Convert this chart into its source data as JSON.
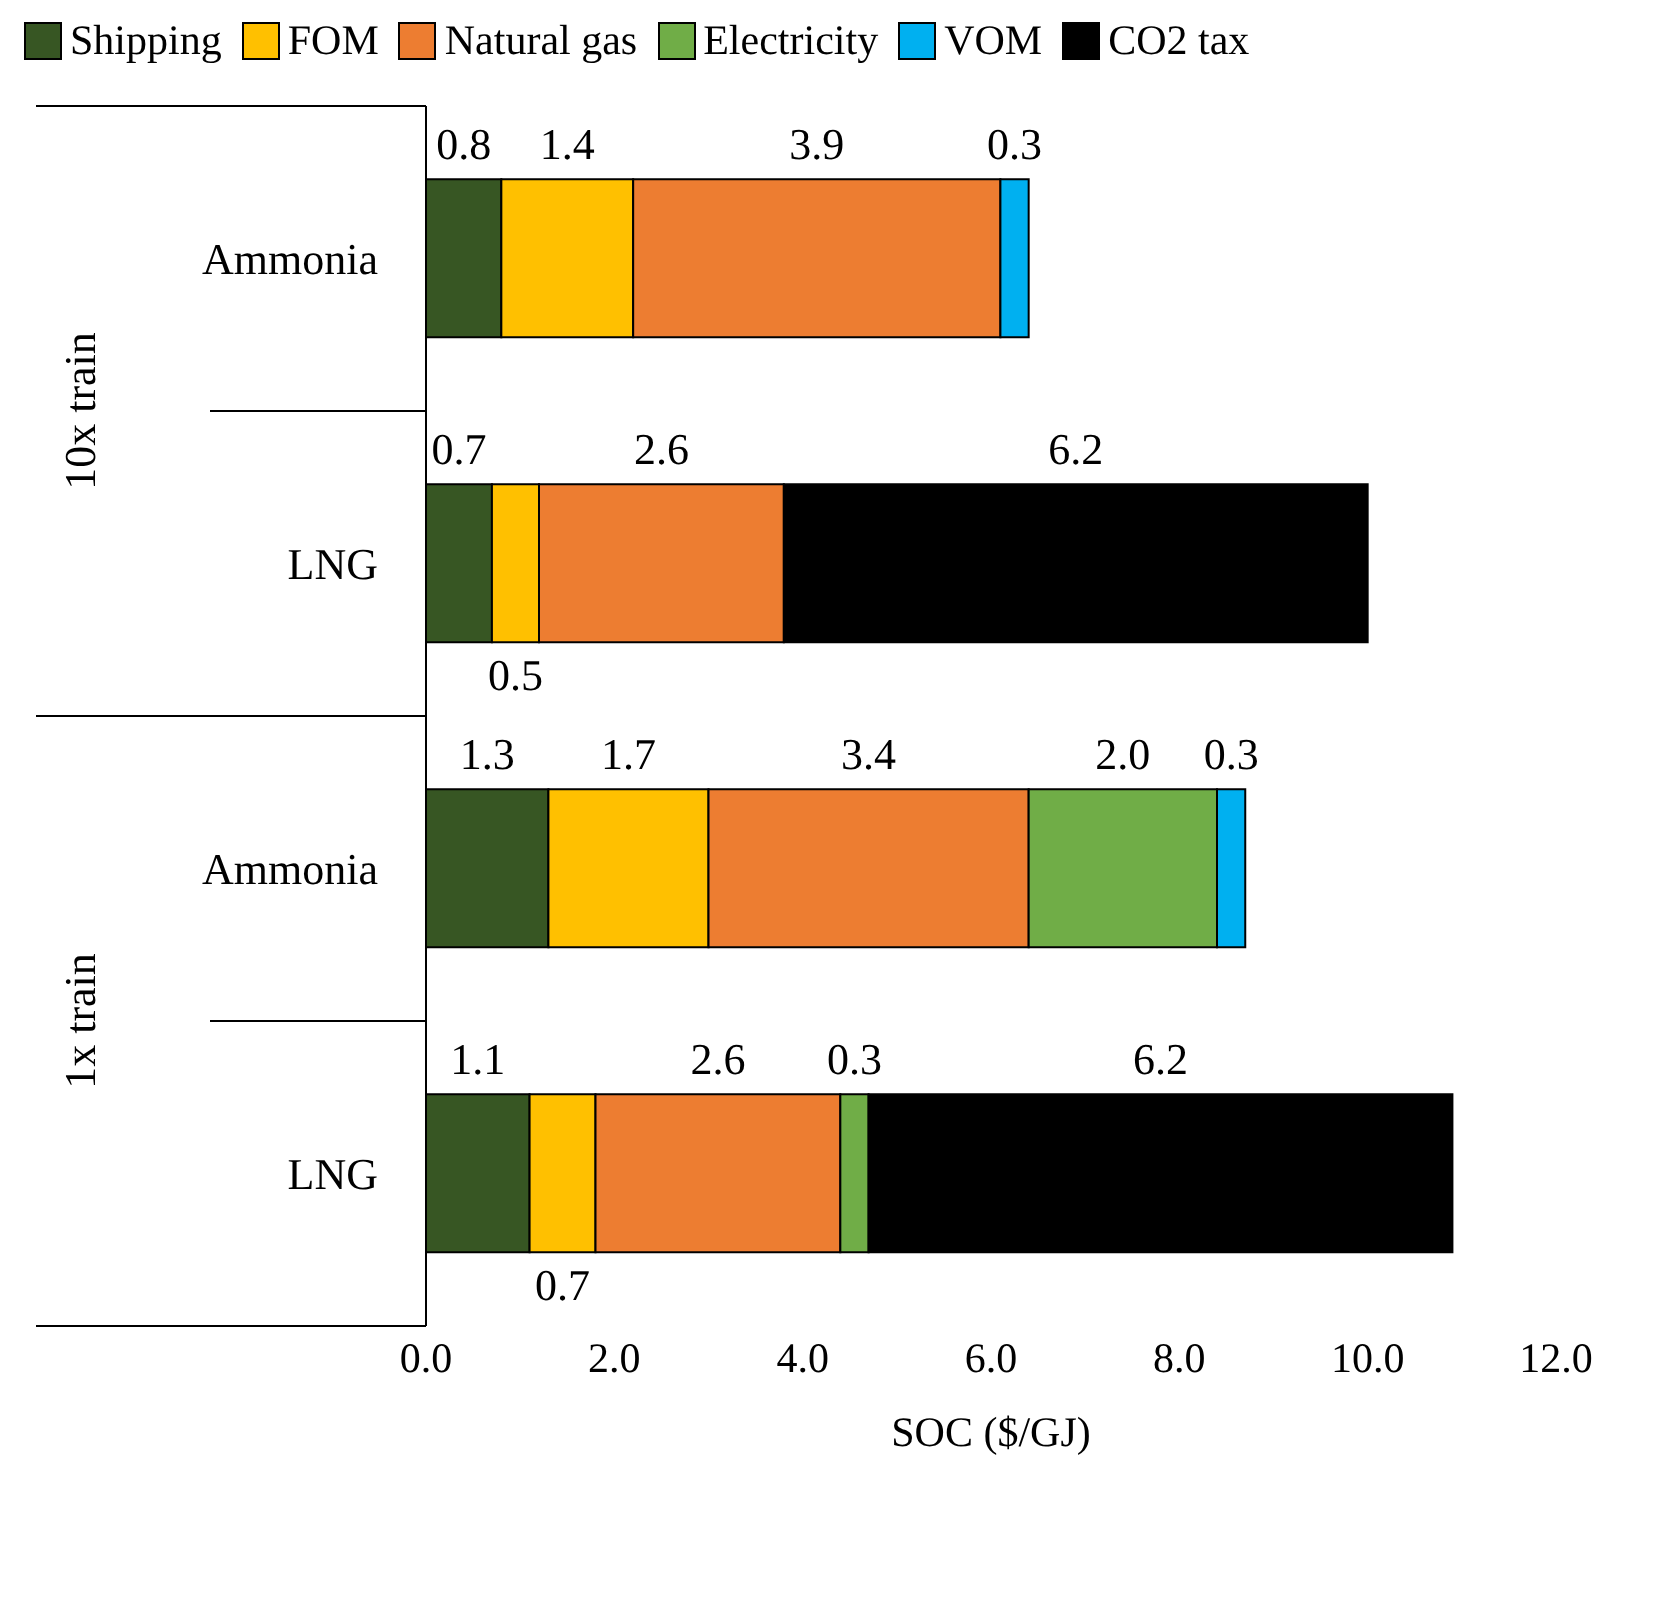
{
  "chart_data": {
    "type": "bar",
    "orientation": "horizontal",
    "stacked": true,
    "xlabel": "SOC ($/GJ)",
    "categories": [
      "Ammonia",
      "LNG",
      "Ammonia",
      "LNG"
    ],
    "annotations": [
      "10x train",
      "1x train"
    ],
    "series": [
      {
        "name": "Shipping",
        "color": "#375623",
        "values": [
          0.8,
          0.7,
          1.3,
          1.1
        ],
        "value_labels": [
          "0.8",
          "0.7",
          "1.3",
          "1.1"
        ]
      },
      {
        "name": "FOM",
        "color": "#ffc000",
        "values": [
          1.4,
          0.5,
          1.7,
          0.7
        ],
        "value_labels": [
          "1.4",
          "0.5",
          "1.7",
          "0.7"
        ]
      },
      {
        "name": "Natural gas",
        "color": "#ed7d31",
        "values": [
          3.9,
          2.6,
          3.4,
          2.6
        ],
        "value_labels": [
          "3.9",
          "2.6",
          "3.4",
          "2.6"
        ]
      },
      {
        "name": "Electricity",
        "color": "#70ad47",
        "values": [
          null,
          null,
          2.0,
          0.3
        ],
        "value_labels": [
          null,
          null,
          "2.0",
          "0.3"
        ]
      },
      {
        "name": "VOM",
        "color": "#00b0f0",
        "values": [
          0.3,
          null,
          0.3,
          null
        ],
        "value_labels": [
          "0.3",
          null,
          "0.3",
          null
        ]
      },
      {
        "name": "CO2 tax",
        "color": "#000000",
        "values": [
          null,
          6.2,
          null,
          6.2
        ],
        "value_labels": [
          null,
          "6.2",
          null,
          "6.2"
        ]
      }
    ],
    "xlim": [
      0,
      12
    ],
    "xticks": [
      {
        "value": 0,
        "label": "0.0"
      },
      {
        "value": 2,
        "label": "2.0"
      },
      {
        "value": 4,
        "label": "4.0"
      },
      {
        "value": 6,
        "label": "6.0"
      },
      {
        "value": 8,
        "label": "8.0"
      },
      {
        "value": 10,
        "label": "10.0"
      },
      {
        "value": 12,
        "label": "12.0"
      }
    ],
    "legend": "top",
    "grid": false
  }
}
